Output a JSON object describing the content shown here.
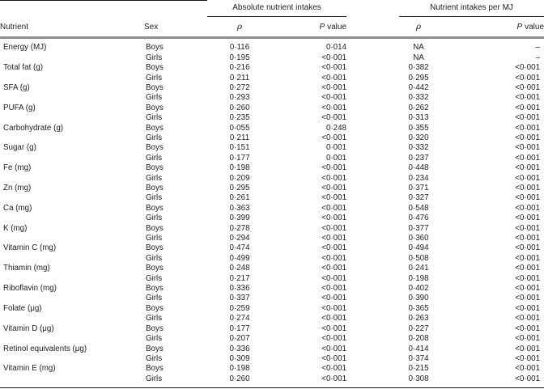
{
  "table": {
    "group_headers": [
      {
        "label": "Absolute nutrient intakes"
      },
      {
        "label": "Nutrient intakes per MJ"
      }
    ],
    "columns": {
      "nutrient": "Nutrient",
      "sex": "Sex",
      "rho": "ρ",
      "p": "P",
      "p_suffix": "value"
    },
    "rows": [
      {
        "nutrient": "Energy (MJ)",
        "sex": "Boys",
        "abs_rho": "0·116",
        "abs_p": "0·014",
        "mj_rho": "NA",
        "mj_p": "–"
      },
      {
        "nutrient": "",
        "sex": "Girls",
        "abs_rho": "0·195",
        "abs_p": "<0·001",
        "mj_rho": "NA",
        "mj_p": "–"
      },
      {
        "nutrient": "Total fat (g)",
        "sex": "Boys",
        "abs_rho": "0·216",
        "abs_p": "<0·001",
        "mj_rho": "0·382",
        "mj_p": "<0·001"
      },
      {
        "nutrient": "",
        "sex": "Girls",
        "abs_rho": "0·211",
        "abs_p": "<0·001",
        "mj_rho": "0·295",
        "mj_p": "<0·001"
      },
      {
        "nutrient": "SFA (g)",
        "sex": "Boys",
        "abs_rho": "0·272",
        "abs_p": "<0·001",
        "mj_rho": "0·442",
        "mj_p": "<0·001"
      },
      {
        "nutrient": "",
        "sex": "Girls",
        "abs_rho": "0·293",
        "abs_p": "<0·001",
        "mj_rho": "0·332",
        "mj_p": "<0·001"
      },
      {
        "nutrient": "PUFA (g)",
        "sex": "Boys",
        "abs_rho": "0·260",
        "abs_p": "<0·001",
        "mj_rho": "0·262",
        "mj_p": "<0·001"
      },
      {
        "nutrient": "",
        "sex": "Girls",
        "abs_rho": "0·235",
        "abs_p": "<0·001",
        "mj_rho": "0·313",
        "mj_p": "<0·001"
      },
      {
        "nutrient": "Carbohydrate (g)",
        "sex": "Boys",
        "abs_rho": "0·055",
        "abs_p": "0·248",
        "mj_rho": "0·355",
        "mj_p": "<0·001"
      },
      {
        "nutrient": "",
        "sex": "Girls",
        "abs_rho": "0·211",
        "abs_p": "<0·001",
        "mj_rho": "0·320",
        "mj_p": "<0·001"
      },
      {
        "nutrient": "Sugar (g)",
        "sex": "Boys",
        "abs_rho": "0·151",
        "abs_p": "0·001",
        "mj_rho": "0·332",
        "mj_p": "<0·001"
      },
      {
        "nutrient": "",
        "sex": "Girls",
        "abs_rho": "0·177",
        "abs_p": "0·001",
        "mj_rho": "0·237",
        "mj_p": "<0·001"
      },
      {
        "nutrient": "Fe (mg)",
        "sex": "Boys",
        "abs_rho": "0·198",
        "abs_p": "<0·001",
        "mj_rho": "0·448",
        "mj_p": "<0·001"
      },
      {
        "nutrient": "",
        "sex": "Girls",
        "abs_rho": "0·209",
        "abs_p": "<0·001",
        "mj_rho": "0·234",
        "mj_p": "<0·001"
      },
      {
        "nutrient": "Zn (mg)",
        "sex": "Boys",
        "abs_rho": "0·295",
        "abs_p": "<0·001",
        "mj_rho": "0·371",
        "mj_p": "<0·001"
      },
      {
        "nutrient": "",
        "sex": "Girls",
        "abs_rho": "0·261",
        "abs_p": "<0·001",
        "mj_rho": "0·327",
        "mj_p": "<0·001"
      },
      {
        "nutrient": "Ca (mg)",
        "sex": "Boys",
        "abs_rho": "0·363",
        "abs_p": "<0·001",
        "mj_rho": "0·548",
        "mj_p": "<0·001"
      },
      {
        "nutrient": "",
        "sex": "Girls",
        "abs_rho": "0·399",
        "abs_p": "<0·001",
        "mj_rho": "0·476",
        "mj_p": "<0·001"
      },
      {
        "nutrient": "K (mg)",
        "sex": "Boys",
        "abs_rho": "0·278",
        "abs_p": "<0·001",
        "mj_rho": "0·377",
        "mj_p": "<0·001"
      },
      {
        "nutrient": "",
        "sex": "Girls",
        "abs_rho": "0·294",
        "abs_p": "<0·001",
        "mj_rho": "0·360",
        "mj_p": "<0·001"
      },
      {
        "nutrient": "Vitamin C (mg)",
        "sex": "Boys",
        "abs_rho": "0·474",
        "abs_p": "<0·001",
        "mj_rho": "0·494",
        "mj_p": "<0·001"
      },
      {
        "nutrient": "",
        "sex": "Girls",
        "abs_rho": "0·499",
        "abs_p": "<0·001",
        "mj_rho": "0·508",
        "mj_p": "<0·001"
      },
      {
        "nutrient": "Thiamin (mg)",
        "sex": "Boys",
        "abs_rho": "0·248",
        "abs_p": "<0·001",
        "mj_rho": "0·241",
        "mj_p": "<0·001"
      },
      {
        "nutrient": "",
        "sex": "Girls",
        "abs_rho": "0·217",
        "abs_p": "<0·001",
        "mj_rho": "0·198",
        "mj_p": "<0·001"
      },
      {
        "nutrient": "Riboflavin (mg)",
        "sex": "Boys",
        "abs_rho": "0·336",
        "abs_p": "<0·001",
        "mj_rho": "0·402",
        "mj_p": "<0·001"
      },
      {
        "nutrient": "",
        "sex": "Girls",
        "abs_rho": "0·337",
        "abs_p": "<0·001",
        "mj_rho": "0·390",
        "mj_p": "<0·001"
      },
      {
        "nutrient": "Folate (μg)",
        "sex": "Boys",
        "abs_rho": "0·259",
        "abs_p": "<0·001",
        "mj_rho": "0·365",
        "mj_p": "<0·001"
      },
      {
        "nutrient": "",
        "sex": "Girls",
        "abs_rho": "0·274",
        "abs_p": "<0·001",
        "mj_rho": "0·263",
        "mj_p": "<0·001"
      },
      {
        "nutrient": "Vitamin D (μg)",
        "sex": "Boys",
        "abs_rho": "0·177",
        "abs_p": "<0·001",
        "mj_rho": "0·227",
        "mj_p": "<0·001"
      },
      {
        "nutrient": "",
        "sex": "Girls",
        "abs_rho": "0·207",
        "abs_p": "<0·001",
        "mj_rho": "0·208",
        "mj_p": "<0·001"
      },
      {
        "nutrient": "Retinol equivalents (μg)",
        "sex": "Boys",
        "abs_rho": "0·336",
        "abs_p": "<0·001",
        "mj_rho": "0·414",
        "mj_p": "<0·001"
      },
      {
        "nutrient": "",
        "sex": "Girls",
        "abs_rho": "0·309",
        "abs_p": "<0·001",
        "mj_rho": "0·374",
        "mj_p": "<0·001"
      },
      {
        "nutrient": "Vitamin E (mg)",
        "sex": "Boys",
        "abs_rho": "0·198",
        "abs_p": "<0·001",
        "mj_rho": "0·215",
        "mj_p": "<0·001"
      },
      {
        "nutrient": "",
        "sex": "Girls",
        "abs_rho": "0·260",
        "abs_p": "<0·001",
        "mj_rho": "0·308",
        "mj_p": "<0·001"
      }
    ]
  }
}
